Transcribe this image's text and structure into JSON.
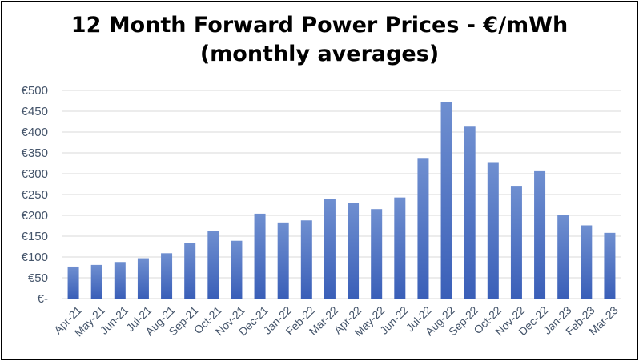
{
  "chart_data": {
    "type": "bar",
    "title": "12 Month Forward Power Prices - €/mWh",
    "subtitle": "(monthly averages)",
    "xlabel": "",
    "ylabel": "",
    "ylim": [
      0,
      500
    ],
    "yticks": [
      0,
      50,
      100,
      150,
      200,
      250,
      300,
      350,
      400,
      450,
      500
    ],
    "ytick_labels": [
      "€-",
      "€50",
      "€100",
      "€150",
      "€200",
      "€250",
      "€300",
      "€350",
      "€400",
      "€450",
      "€500"
    ],
    "grid": true,
    "legend": "none",
    "bar_color_top": "#6f8fd0",
    "bar_color_bottom": "#3a5fb8",
    "grid_color": "#d9d9d9",
    "tick_color": "#44546a",
    "categories": [
      "Apr-21",
      "May-21",
      "Jun-21",
      "Jul-21",
      "Aug-21",
      "Sep-21",
      "Oct-21",
      "Nov-21",
      "Dec-21",
      "Jan-22",
      "Feb-22",
      "Mar-22",
      "Apr-22",
      "May-22",
      "Jun-22",
      "Jul-22",
      "Aug-22",
      "Sep-22",
      "Oct-22",
      "Nov-22",
      "Dec-22",
      "Jan-23",
      "Feb-23",
      "Mar-23"
    ],
    "values": [
      77,
      81,
      88,
      97,
      109,
      133,
      162,
      139,
      204,
      183,
      188,
      239,
      230,
      215,
      243,
      336,
      473,
      413,
      326,
      271,
      306,
      200,
      176,
      158
    ]
  }
}
